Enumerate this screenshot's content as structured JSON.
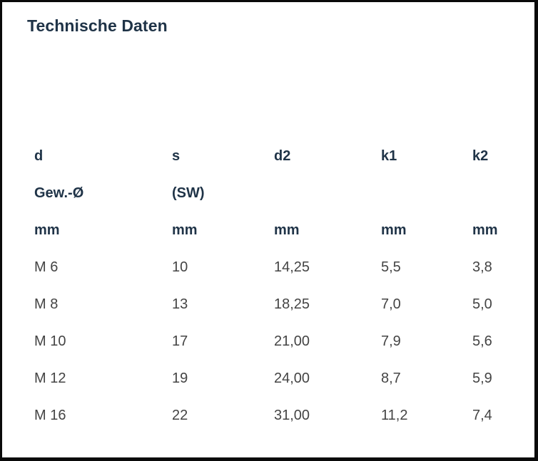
{
  "title": "Technische Daten",
  "header_rows": [
    [
      "d",
      "s",
      "d2",
      "k1",
      "k2"
    ],
    [
      "Gew.-Ø",
      "(SW)",
      "",
      "",
      ""
    ],
    [
      "mm",
      "mm",
      "mm",
      "mm",
      "mm"
    ]
  ],
  "rows": [
    [
      "M 6",
      "10",
      "14,25",
      "5,5",
      "3,8"
    ],
    [
      "M 8",
      "13",
      "18,25",
      "7,0",
      "5,0"
    ],
    [
      "M 10",
      "17",
      "21,00",
      "7,9",
      "5,6"
    ],
    [
      "M 12",
      "19",
      "24,00",
      "8,7",
      "5,9"
    ],
    [
      "M 16",
      "22",
      "31,00",
      "11,2",
      "7,4"
    ]
  ],
  "colors": {
    "heading": "#1f3347",
    "body_text": "#444444",
    "border": "#0a0a0a",
    "background": "#ffffff"
  }
}
